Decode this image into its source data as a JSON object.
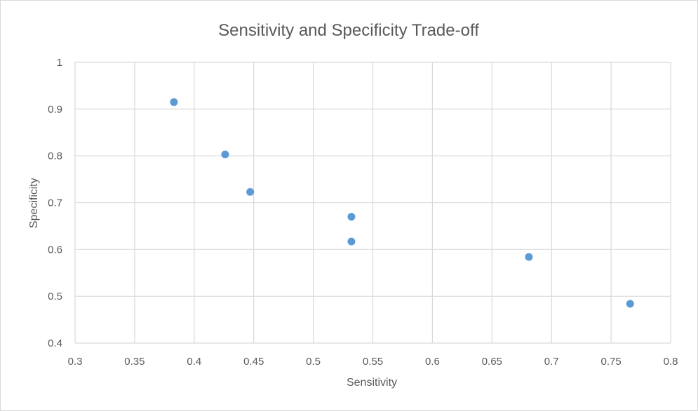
{
  "chart_data": {
    "type": "scatter",
    "title": "Sensitivity and Specificity Trade-off",
    "xlabel": "Sensitivity",
    "ylabel": "Specificity",
    "xlim": [
      0.3,
      0.8
    ],
    "ylim": [
      0.4,
      1
    ],
    "xticks": [
      0.3,
      0.35,
      0.4,
      0.45,
      0.5,
      0.55,
      0.6,
      0.65,
      0.7,
      0.75,
      0.8
    ],
    "xtick_labels": [
      "0.3",
      "0.35",
      "0.4",
      "0.45",
      "0.5",
      "0.55",
      "0.6",
      "0.65",
      "0.7",
      "0.75",
      "0.8"
    ],
    "yticks": [
      0.4,
      0.5,
      0.6,
      0.7,
      0.8,
      0.9,
      1
    ],
    "ytick_labels": [
      "0.4",
      "0.5",
      "0.6",
      "0.7",
      "0.8",
      "0.9",
      "1"
    ],
    "grid": true,
    "legend": "none",
    "series": [
      {
        "color": "#5b9bd5",
        "points": [
          {
            "x": 0.383,
            "y": 0.915
          },
          {
            "x": 0.426,
            "y": 0.803
          },
          {
            "x": 0.447,
            "y": 0.723
          },
          {
            "x": 0.532,
            "y": 0.67
          },
          {
            "x": 0.532,
            "y": 0.617
          },
          {
            "x": 0.681,
            "y": 0.584
          },
          {
            "x": 0.766,
            "y": 0.484
          }
        ]
      }
    ]
  }
}
